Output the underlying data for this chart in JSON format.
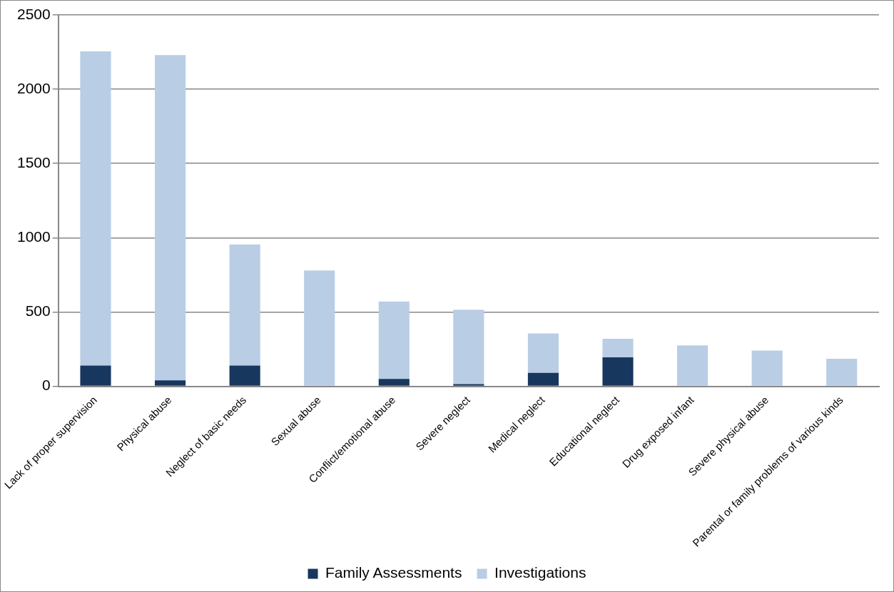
{
  "chart_data": {
    "type": "bar",
    "stacked": true,
    "categories": [
      "Lack of proper supervision",
      "Physical abuse",
      "Neglect of basic needs",
      "Sexual abuse",
      "Conflict/emotional abuse",
      "Severe neglect",
      "Medical neglect",
      "Educational neglect",
      "Drug exposed infant",
      "Severe physical abuse",
      "Parental or family problems of various kinds"
    ],
    "series": [
      {
        "name": "Family Assessments",
        "color": "#17375e",
        "values": [
          140,
          40,
          140,
          0,
          50,
          15,
          90,
          195,
          0,
          null,
          null
        ]
      },
      {
        "name": "Investigations",
        "color": "#b9cde5",
        "values": [
          2115,
          2190,
          815,
          780,
          520,
          500,
          265,
          125,
          275,
          240,
          185
        ]
      }
    ],
    "ylim": [
      0,
      2500
    ],
    "yticks": [
      0,
      500,
      1000,
      1500,
      2000,
      2500
    ],
    "grid": "y",
    "legend": "bottom"
  }
}
